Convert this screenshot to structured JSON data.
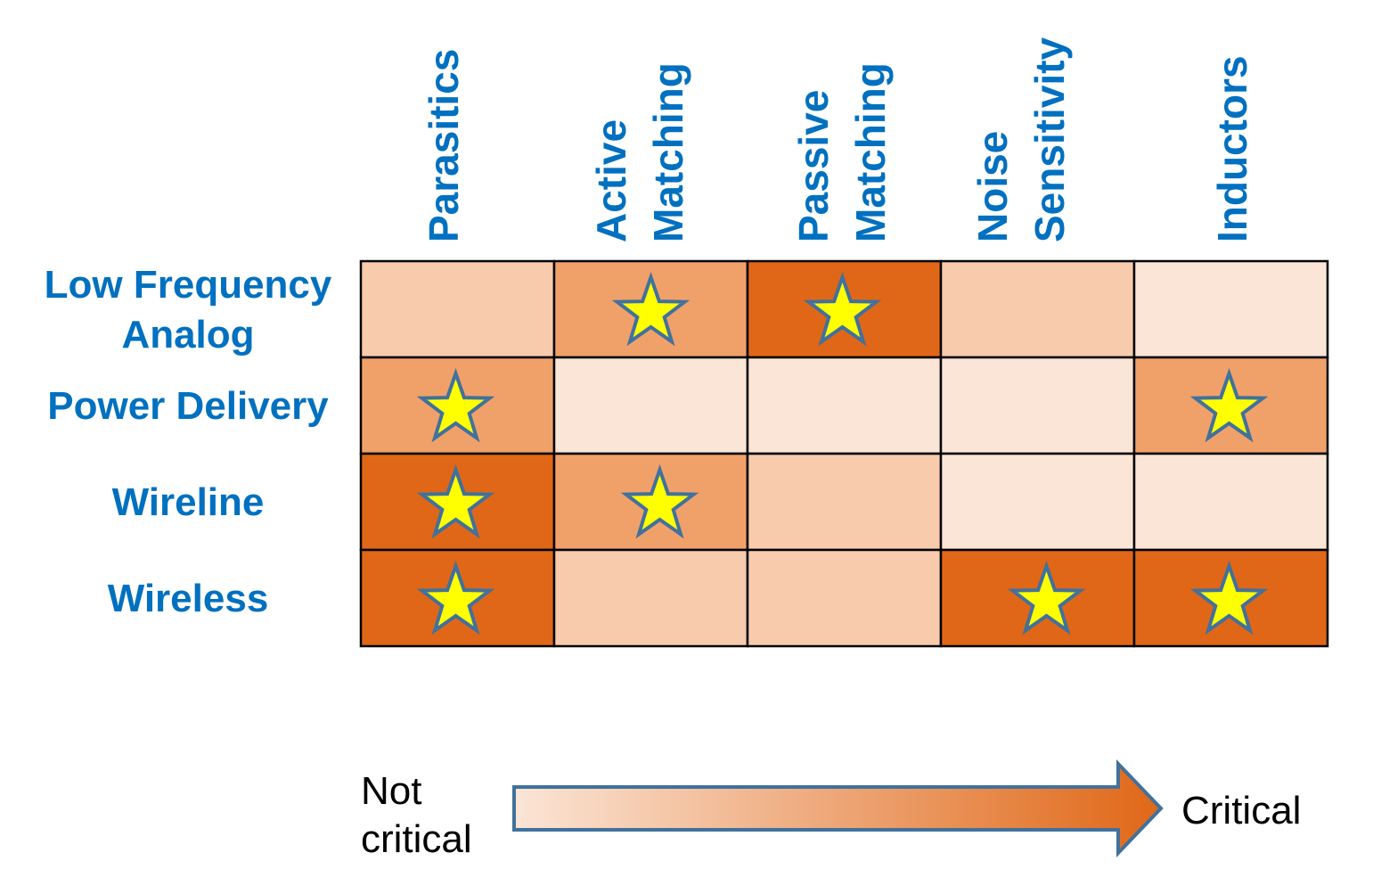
{
  "chart_data": {
    "type": "heatmap",
    "columns": [
      "Parasitics",
      "Active Matching",
      "Passive Matching",
      "Noise Sensitivity",
      "Inductors"
    ],
    "column_lines": [
      [
        "Parasitics"
      ],
      [
        "Active",
        "Matching"
      ],
      [
        "Passive",
        "Matching"
      ],
      [
        "Noise",
        "Sensitivity"
      ],
      [
        "Inductors"
      ]
    ],
    "rows": [
      "Low Frequency Analog",
      "Power Delivery",
      "Wireline",
      "Wireless"
    ],
    "row_lines": [
      [
        "Low Frequency",
        "Analog"
      ],
      [
        "Power Delivery"
      ],
      [
        "Wireline"
      ],
      [
        "Wireless"
      ]
    ],
    "criticality_levels": 4,
    "values": [
      [
        2,
        3,
        4,
        2,
        1
      ],
      [
        3,
        1,
        1,
        1,
        3
      ],
      [
        4,
        3,
        2,
        1,
        1
      ],
      [
        4,
        2,
        2,
        4,
        4
      ]
    ],
    "stars": [
      [
        false,
        true,
        true,
        false,
        false
      ],
      [
        true,
        false,
        false,
        false,
        true
      ],
      [
        true,
        true,
        false,
        false,
        false
      ],
      [
        true,
        false,
        false,
        true,
        true
      ]
    ],
    "level_colors": {
      "1": "#fbe5d6",
      "2": "#f8cbad",
      "3": "#f0a16a",
      "4": "#e06717"
    },
    "star_fill": "#ffff00",
    "star_stroke": "#41719c",
    "label_color": "#0070c0",
    "legend": {
      "low_label_lines": [
        "Not",
        "critical"
      ],
      "high_label": "Critical",
      "gradient_start": "#fbe5d6",
      "gradient_end": "#e06717",
      "arrow_outline": "#41719c"
    }
  }
}
